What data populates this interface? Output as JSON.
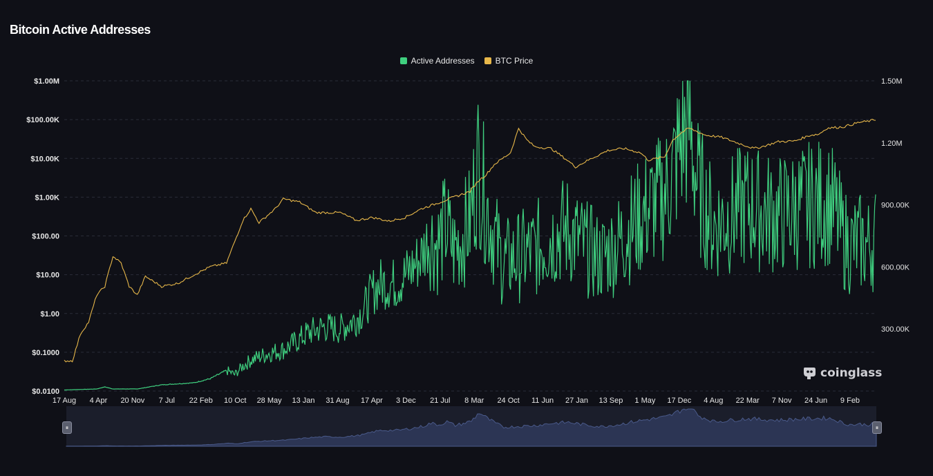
{
  "title": "Bitcoin Active Addresses",
  "legend": {
    "active": {
      "label": "Active Addresses",
      "color": "#3fcf7f"
    },
    "price": {
      "label": "BTC Price",
      "color": "#e8b84a"
    }
  },
  "logo_text": "coinglass",
  "chart_data": {
    "type": "line",
    "left_axis": {
      "scale": "log",
      "ticks": [
        "$1.00M",
        "$100.00K",
        "$10.00K",
        "$1.00K",
        "$100.00",
        "$10.00",
        "$1.00",
        "$0.1000",
        "$0.0100"
      ],
      "range": [
        0.01,
        1000000
      ]
    },
    "right_axis": {
      "scale": "linear",
      "ticks": [
        "1.50M",
        "1.20M",
        "900.00K",
        "600.00K",
        "300.00K"
      ],
      "range": [
        0,
        1500000
      ]
    },
    "x_ticks": [
      "17 Aug",
      "4 Apr",
      "20 Nov",
      "7 Jul",
      "22 Feb",
      "10 Oct",
      "28 May",
      "13 Jan",
      "31 Aug",
      "17 Apr",
      "3 Dec",
      "21 Jul",
      "8 Mar",
      "24 Oct",
      "11 Jun",
      "27 Jan",
      "13 Sep",
      "1 May",
      "17 Dec",
      "4 Aug",
      "22 Mar",
      "7 Nov",
      "24 Jun",
      "9 Feb"
    ],
    "grid": true,
    "legend_position": "top-center",
    "series": [
      {
        "name": "BTC Price",
        "axis": "left",
        "color": "#e8b84a",
        "points": [
          [
            0,
            0.06
          ],
          [
            0.01,
            0.06
          ],
          [
            0.02,
            0.3
          ],
          [
            0.03,
            0.6
          ],
          [
            0.04,
            3
          ],
          [
            0.05,
            5
          ],
          [
            0.06,
            30
          ],
          [
            0.07,
            20
          ],
          [
            0.08,
            5
          ],
          [
            0.09,
            3
          ],
          [
            0.1,
            9
          ],
          [
            0.12,
            5
          ],
          [
            0.14,
            6
          ],
          [
            0.16,
            10
          ],
          [
            0.18,
            16
          ],
          [
            0.2,
            20
          ],
          [
            0.22,
            250
          ],
          [
            0.23,
            500
          ],
          [
            0.24,
            220
          ],
          [
            0.26,
            500
          ],
          [
            0.27,
            900
          ],
          [
            0.29,
            750
          ],
          [
            0.31,
            400
          ],
          [
            0.34,
            400
          ],
          [
            0.36,
            250
          ],
          [
            0.38,
            300
          ],
          [
            0.4,
            240
          ],
          [
            0.42,
            300
          ],
          [
            0.44,
            500
          ],
          [
            0.46,
            700
          ],
          [
            0.48,
            1000
          ],
          [
            0.5,
            1400
          ],
          [
            0.51,
            2600
          ],
          [
            0.52,
            3800
          ],
          [
            0.53,
            7000
          ],
          [
            0.55,
            14000
          ],
          [
            0.56,
            60000
          ],
          [
            0.57,
            30000
          ],
          [
            0.58,
            20000
          ],
          [
            0.6,
            18000
          ],
          [
            0.62,
            9000
          ],
          [
            0.63,
            6000
          ],
          [
            0.65,
            10000
          ],
          [
            0.67,
            16000
          ],
          [
            0.69,
            18000
          ],
          [
            0.71,
            14000
          ],
          [
            0.72,
            9000
          ],
          [
            0.74,
            11000
          ],
          [
            0.75,
            30000
          ],
          [
            0.76,
            45000
          ],
          [
            0.77,
            60000
          ],
          [
            0.79,
            40000
          ],
          [
            0.81,
            35000
          ],
          [
            0.83,
            25000
          ],
          [
            0.85,
            18000
          ],
          [
            0.86,
            20000
          ],
          [
            0.88,
            27000
          ],
          [
            0.9,
            28000
          ],
          [
            0.92,
            40000
          ],
          [
            0.93,
            42000
          ],
          [
            0.94,
            60000
          ],
          [
            0.96,
            65000
          ],
          [
            0.98,
            85000
          ],
          [
            0.99,
            90000
          ],
          [
            1.0,
            100000
          ]
        ]
      },
      {
        "name": "Active Addresses",
        "axis": "right",
        "color": "#3fcf7f",
        "points": [
          [
            0,
            5000
          ],
          [
            0.04,
            10000
          ],
          [
            0.05,
            20000
          ],
          [
            0.06,
            10000
          ],
          [
            0.09,
            10000
          ],
          [
            0.12,
            30000
          ],
          [
            0.16,
            40000
          ],
          [
            0.18,
            60000
          ],
          [
            0.19,
            80000
          ],
          [
            0.2,
            100000
          ],
          [
            0.21,
            80000
          ],
          [
            0.22,
            120000
          ],
          [
            0.23,
            150000
          ],
          [
            0.25,
            180000
          ],
          [
            0.27,
            200000
          ],
          [
            0.29,
            250000
          ],
          [
            0.3,
            280000
          ],
          [
            0.32,
            310000
          ],
          [
            0.34,
            300000
          ],
          [
            0.36,
            350000
          ],
          [
            0.37,
            400000
          ],
          [
            0.38,
            480000
          ],
          [
            0.39,
            520000
          ],
          [
            0.41,
            520000
          ],
          [
            0.42,
            560000
          ],
          [
            0.43,
            600000
          ],
          [
            0.44,
            650000
          ],
          [
            0.45,
            750000
          ],
          [
            0.46,
            700000
          ],
          [
            0.47,
            800000
          ],
          [
            0.48,
            680000
          ],
          [
            0.49,
            740000
          ],
          [
            0.5,
            820000
          ],
          [
            0.51,
            1100000
          ],
          [
            0.52,
            900000
          ],
          [
            0.53,
            750000
          ],
          [
            0.54,
            620000
          ],
          [
            0.56,
            650000
          ],
          [
            0.58,
            680000
          ],
          [
            0.6,
            750000
          ],
          [
            0.62,
            780000
          ],
          [
            0.64,
            700000
          ],
          [
            0.66,
            640000
          ],
          [
            0.68,
            700000
          ],
          [
            0.7,
            800000
          ],
          [
            0.72,
            880000
          ],
          [
            0.74,
            950000
          ],
          [
            0.75,
            1050000
          ],
          [
            0.76,
            1200000
          ],
          [
            0.77,
            1300000
          ],
          [
            0.78,
            1000000
          ],
          [
            0.79,
            900000
          ],
          [
            0.8,
            800000
          ],
          [
            0.82,
            850000
          ],
          [
            0.84,
            900000
          ],
          [
            0.86,
            870000
          ],
          [
            0.88,
            850000
          ],
          [
            0.9,
            880000
          ],
          [
            0.92,
            900000
          ],
          [
            0.94,
            920000
          ],
          [
            0.95,
            860000
          ],
          [
            0.96,
            740000
          ],
          [
            0.97,
            700000
          ],
          [
            0.98,
            720000
          ],
          [
            0.99,
            700000
          ],
          [
            1.0,
            740000
          ]
        ]
      }
    ]
  }
}
